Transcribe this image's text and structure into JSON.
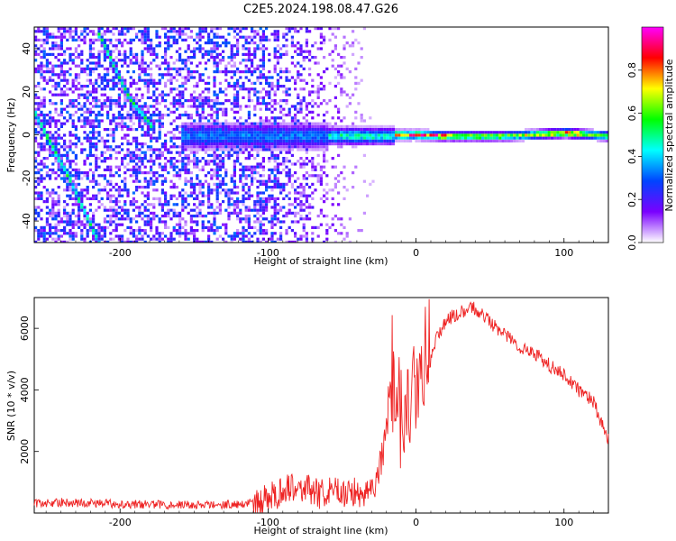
{
  "title": "C2E5.2024.198.08.47.G26",
  "chart_data": [
    {
      "type": "heatmap",
      "xlabel": "Height of straight line (km)",
      "ylabel": "Frequency (Hz)",
      "xlim": [
        -258,
        130
      ],
      "ylim": [
        -50,
        50
      ],
      "xticks": [
        -200,
        -100,
        0,
        100
      ],
      "yticks": [
        -40,
        -20,
        0,
        20,
        40
      ],
      "colorbar": {
        "label": "Normalized spectral amplitude",
        "range": [
          0,
          1
        ],
        "ticks": [
          "0.0",
          "0.2",
          "0.4",
          "0.6",
          "0.8"
        ],
        "colors": [
          "#ffffff",
          "#7a00ff",
          "#0044ff",
          "#00ffff",
          "#00ff00",
          "#ffff00",
          "#ff0000",
          "#ff00ff"
        ]
      },
      "ridges": [
        {
          "name": "",
          "points": [
            [
              -15,
              0.5
            ],
            [
              0,
              0.5
            ],
            [
              20,
              0
            ],
            [
              60,
              0
            ],
            [
              100,
              1.5
            ],
            [
              130,
              0
            ]
          ]
        },
        {
          "name": "",
          "points": [
            [
              -258,
              10
            ],
            [
              -235,
              -20
            ],
            [
              -215,
              -50
            ]
          ]
        },
        {
          "name": "",
          "points": [
            [
              -217,
              50
            ],
            [
              -195,
              18
            ],
            [
              -180,
              5
            ]
          ]
        }
      ]
    },
    {
      "type": "line",
      "xlabel": "Height of straight line (km)",
      "ylabel": "SNR (10 * v/v)",
      "xlim": [
        -258,
        130
      ],
      "ylim": [
        0,
        7000
      ],
      "xticks": [
        -200,
        -100,
        0,
        100
      ],
      "yticks": [
        2000,
        4000,
        6000
      ],
      "color": "#ee2222",
      "series": [
        {
          "x": [
            -258,
            -240,
            -220,
            -200,
            -180,
            -160,
            -140,
            -120,
            -105,
            -95,
            -85,
            -75,
            -65,
            -55,
            -45,
            -35,
            -28,
            -22,
            -18,
            -15,
            -12,
            -8,
            -4,
            0,
            5,
            10,
            15,
            20,
            25,
            30,
            35,
            40,
            45,
            50,
            60,
            70,
            80,
            90,
            100,
            110,
            120,
            125,
            128,
            130
          ],
          "y": [
            300,
            350,
            320,
            300,
            280,
            270,
            260,
            300,
            350,
            600,
            900,
            800,
            600,
            700,
            650,
            700,
            900,
            2000,
            3500,
            4200,
            3000,
            2800,
            3500,
            4000,
            4300,
            5200,
            5800,
            6200,
            6400,
            6500,
            6600,
            6650,
            6500,
            6200,
            5800,
            5400,
            5200,
            4800,
            4500,
            4000,
            3600,
            3000,
            2500,
            2400
          ]
        }
      ]
    }
  ]
}
